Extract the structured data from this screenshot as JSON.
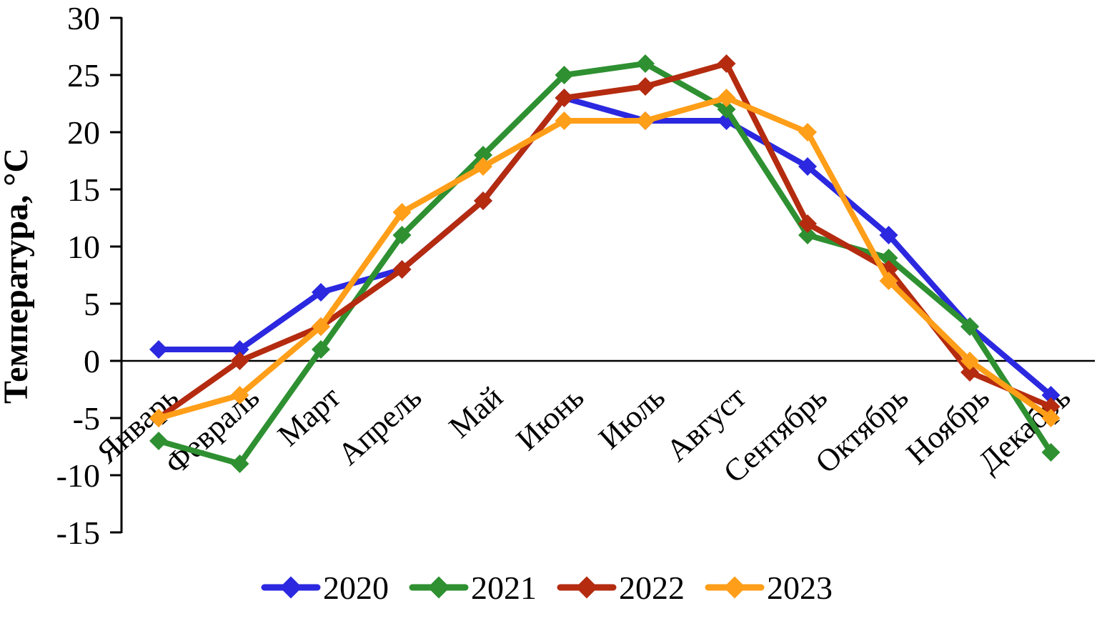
{
  "chart_data": {
    "type": "line",
    "title": "",
    "ylabel": "Температура, °С",
    "xlabel": "",
    "categories": [
      "Январь",
      "Февраль",
      "Март",
      "Апрель",
      "Май",
      "Июнь",
      "Июль",
      "Август",
      "Сентябрь",
      "Октябрь",
      "Ноябрь",
      "Декабрь"
    ],
    "series": [
      {
        "name": "2020",
        "color": "#2B28E0",
        "values": [
          1,
          1,
          6,
          8,
          14,
          23,
          21,
          21,
          17,
          11,
          3,
          -3
        ]
      },
      {
        "name": "2021",
        "color": "#2E9031",
        "values": [
          -7,
          -9,
          1,
          11,
          18,
          25,
          26,
          22,
          11,
          9,
          3,
          -8
        ]
      },
      {
        "name": "2022",
        "color": "#B42B10",
        "values": [
          -5,
          0,
          3,
          8,
          14,
          23,
          24,
          26,
          12,
          8,
          -1,
          -4
        ]
      },
      {
        "name": "2023",
        "color": "#FF9E18",
        "values": [
          -5,
          -3,
          3,
          13,
          17,
          21,
          21,
          23,
          20,
          7,
          0,
          -5
        ]
      }
    ],
    "y_ticks": [
      30,
      25,
      20,
      15,
      10,
      5,
      0,
      -5,
      -10,
      -15
    ],
    "ylim": [
      -15,
      30
    ],
    "grid": false,
    "axis_color": "#000000",
    "background_color": "#FFFFFF",
    "marker": "diamond",
    "legend_position": "bottom",
    "legend_labels": [
      "2020",
      "2021",
      "2022",
      "2023"
    ]
  }
}
